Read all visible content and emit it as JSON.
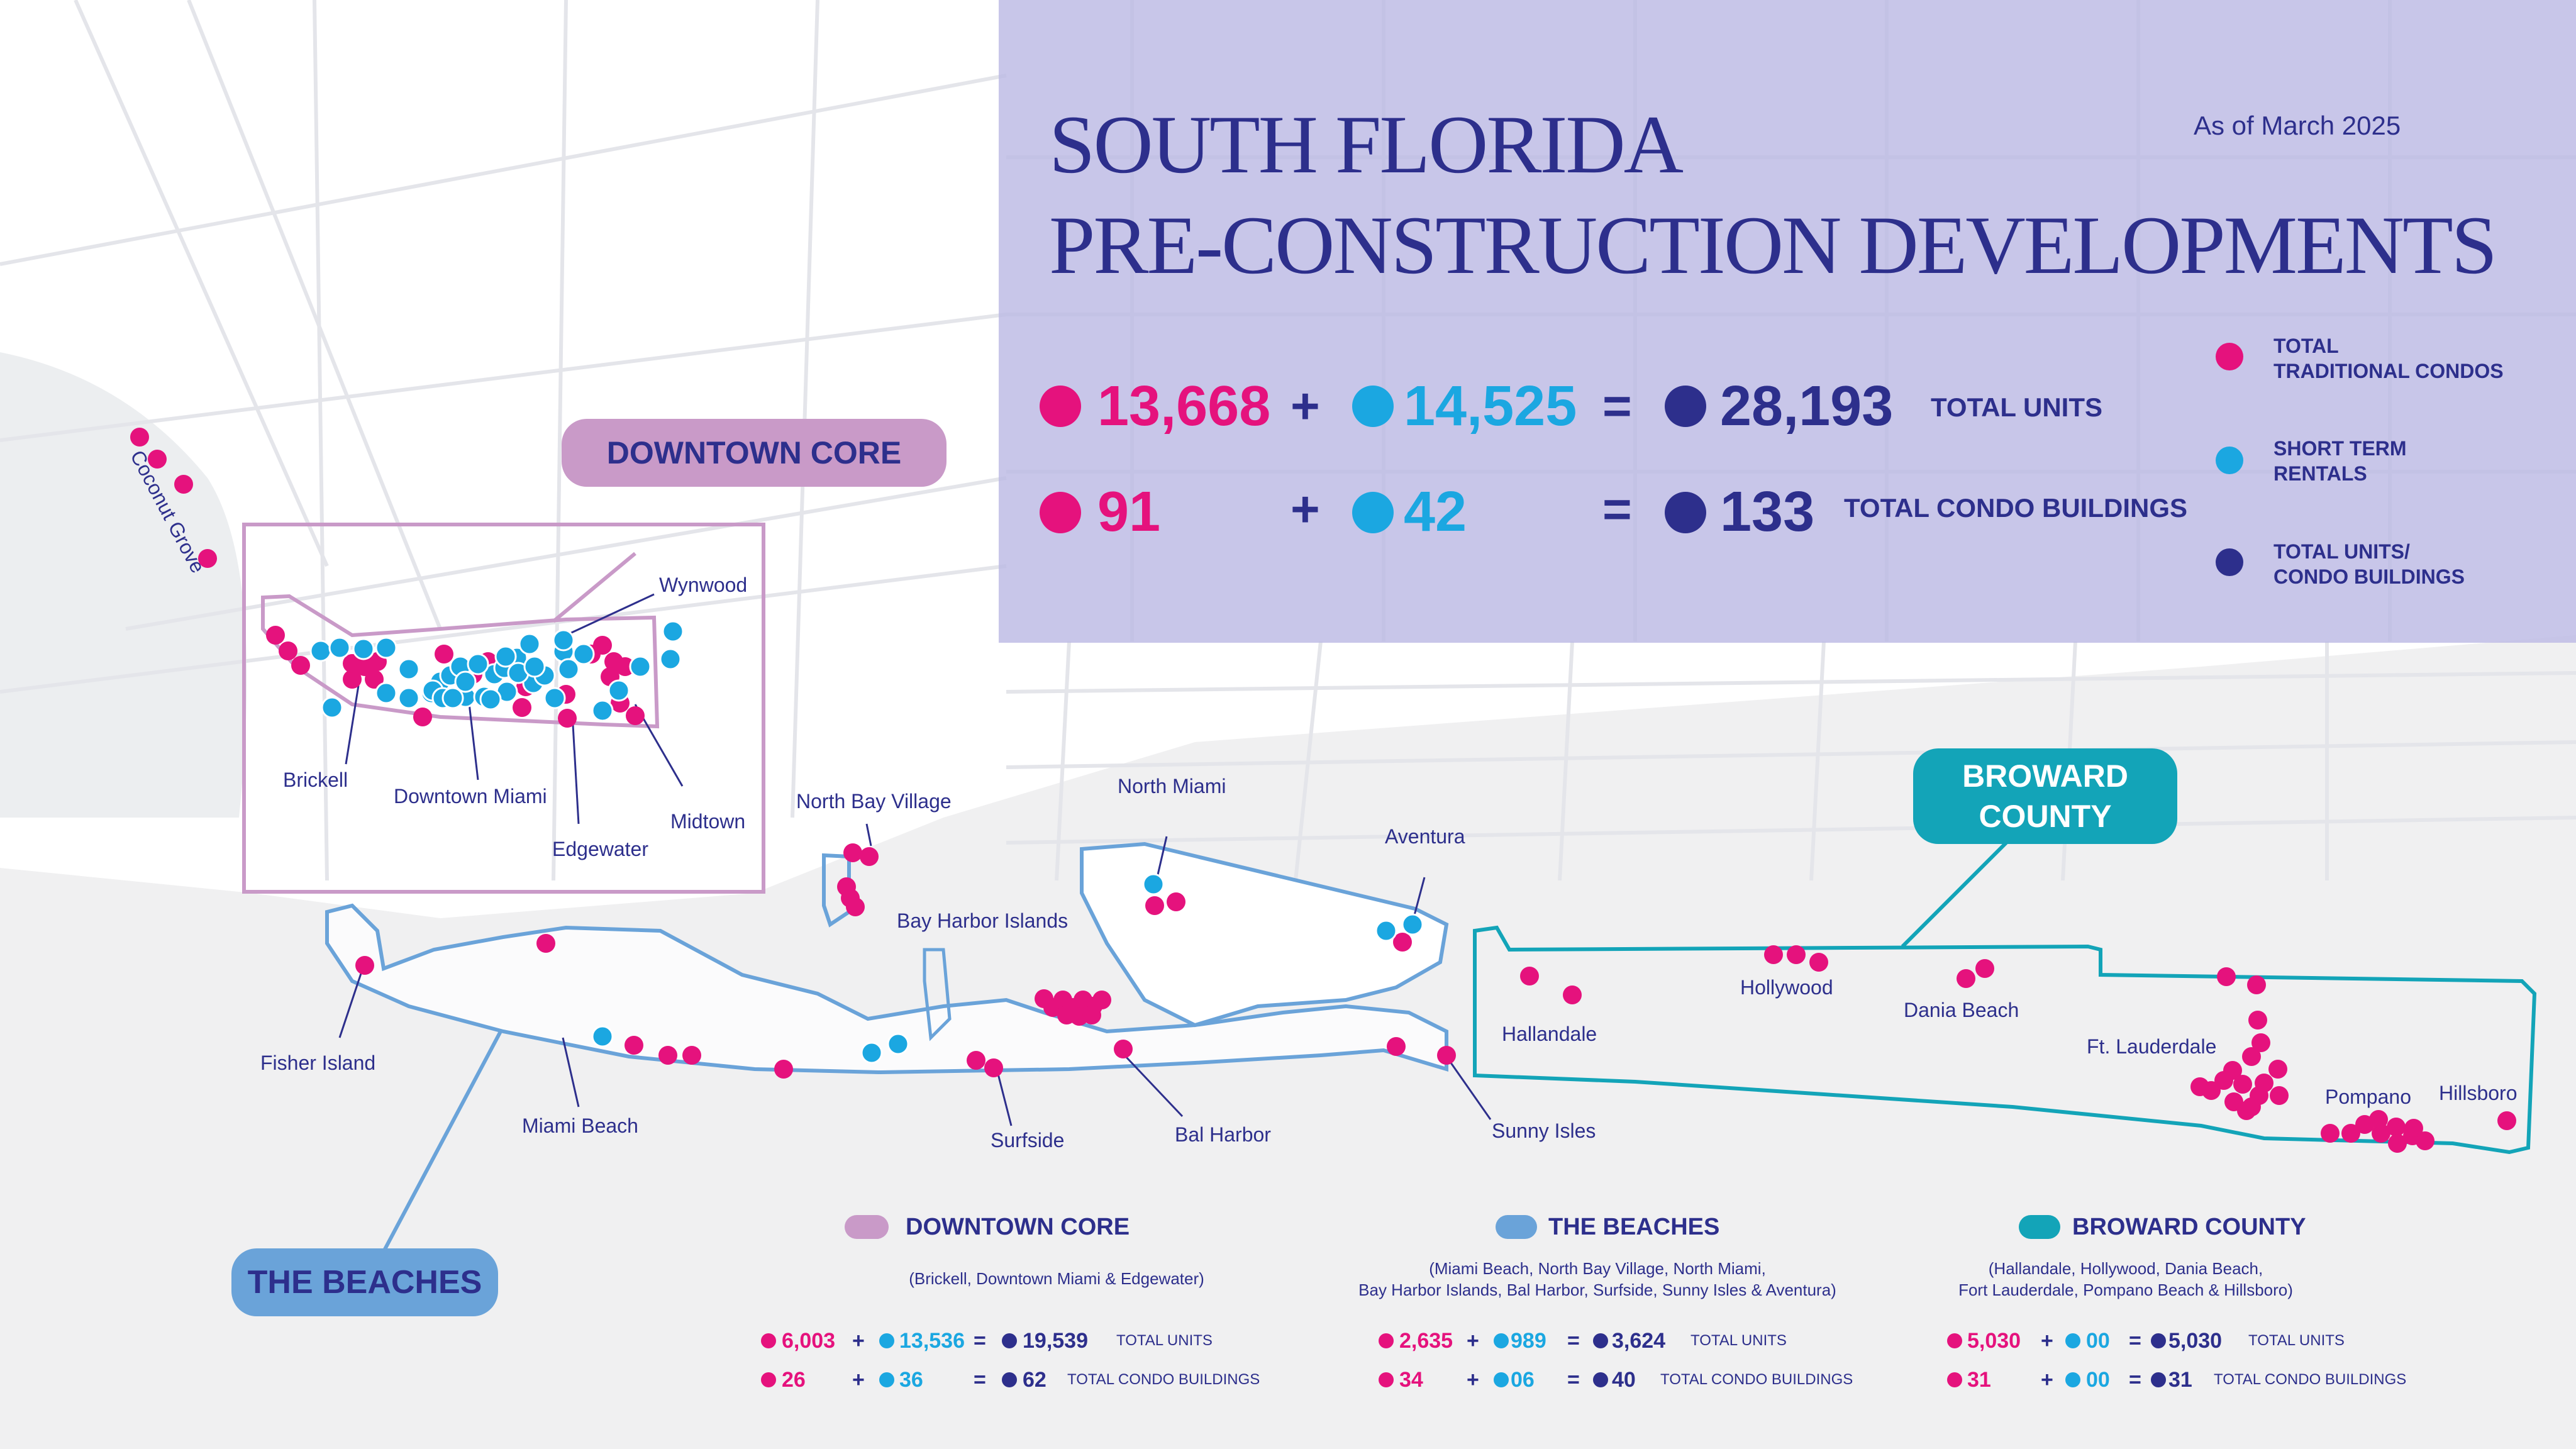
{
  "colors": {
    "traditional": "#e5127d",
    "short_term": "#1ba7e1",
    "total": "#2d2f8c",
    "downtown": "#c99ac8",
    "beaches": "#6aa3d9",
    "broward": "#13a4b8"
  },
  "header": {
    "title_line1": "SOUTH FLORIDA",
    "title_line2": "PRE-CONSTRUCTION DEVELOPMENTS",
    "as_of": "As of March 2025"
  },
  "totals": {
    "units": {
      "traditional": "13,668",
      "short_term": "14,525",
      "total": "28,193",
      "label": "TOTAL UNITS"
    },
    "buildings": {
      "traditional": "91",
      "short_term": "42",
      "total": "133",
      "label": "TOTAL CONDO BUILDINGS"
    },
    "plus": "+",
    "equals": "="
  },
  "legend": [
    {
      "label": "TOTAL\nTRADITIONAL CONDOS",
      "color": "#e5127d"
    },
    {
      "label": "SHORT TERM\nRENTALS",
      "color": "#1ba7e1"
    },
    {
      "label": "TOTAL UNITS/\nCONDO BUILDINGS",
      "color": "#2d2f8c"
    }
  ],
  "region_tags": {
    "downtown": "DOWNTOWN CORE",
    "beaches": "THE BEACHES",
    "broward_line1": "BROWARD",
    "broward_line2": "COUNTY"
  },
  "places": {
    "coconut_grove": "Coconut Grove",
    "wynwood": "Wynwood",
    "brickell": "Brickell",
    "downtown_miami": "Downtown Miami",
    "edgewater": "Edgewater",
    "midtown": "Midtown",
    "north_bay_village": "North Bay Village",
    "bay_harbor_islands": "Bay Harbor Islands",
    "north_miami": "North Miami",
    "aventura": "Aventura",
    "fisher_island": "Fisher Island",
    "miami_beach": "Miami Beach",
    "surfside": "Surfside",
    "bal_harbor": "Bal Harbor",
    "sunny_isles": "Sunny Isles",
    "hallandale": "Hallandale",
    "hollywood": "Hollywood",
    "dania_beach": "Dania Beach",
    "ft_lauderdale": "Ft. Lauderdale",
    "pompano": "Pompano",
    "hillsboro": "Hillsboro"
  },
  "regions": [
    {
      "name": "DOWNTOWN CORE",
      "sub1": "(Brickell, Downtown Miami & Edgewater)",
      "sub2": "",
      "units": {
        "traditional": "6,003",
        "short_term": "13,536",
        "total": "19,539"
      },
      "buildings": {
        "traditional": "26",
        "short_term": "36",
        "total": "62"
      },
      "units_label": "TOTAL UNITS",
      "buildings_label": "TOTAL CONDO BUILDINGS"
    },
    {
      "name": "THE BEACHES",
      "sub1": "(Miami Beach, North Bay Village, North Miami,",
      "sub2": "Bay Harbor Islands, Bal Harbor, Surfside, Sunny Isles & Aventura)",
      "units": {
        "traditional": "2,635",
        "short_term": "989",
        "total": "3,624"
      },
      "buildings": {
        "traditional": "34",
        "short_term": "06",
        "total": "40"
      },
      "units_label": "TOTAL UNITS",
      "buildings_label": "TOTAL CONDO BUILDINGS"
    },
    {
      "name": "BROWARD COUNTY",
      "sub1": "(Hallandale, Hollywood, Dania Beach,",
      "sub2": "Fort Lauderdale, Pompano Beach & Hillsboro)",
      "units": {
        "traditional": "5,030",
        "short_term": "00",
        "total": "5,030"
      },
      "buildings": {
        "traditional": "31",
        "short_term": "00",
        "total": "31"
      },
      "units_label": "TOTAL UNITS",
      "buildings_label": "TOTAL CONDO BUILDINGS"
    }
  ]
}
